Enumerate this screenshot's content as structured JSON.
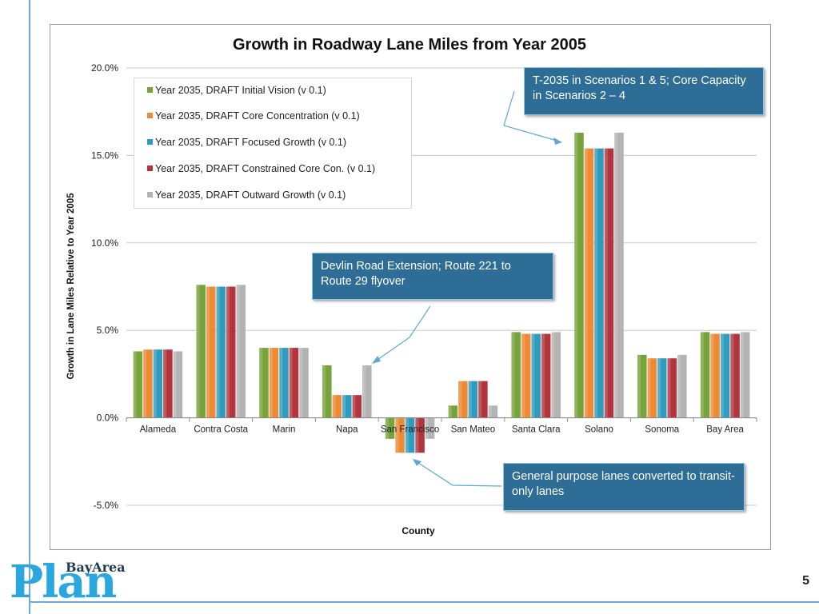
{
  "page": {
    "number": "5"
  },
  "logo": {
    "small": "BayArea",
    "large": "Plan"
  },
  "callouts": {
    "solano": "T-2035 in Scenarios 1 & 5; Core Capacity in Scenarios 2 – 4",
    "napa": "Devlin Road Extension; Route 221 to Route 29 flyover",
    "sf": "General purpose lanes converted to transit-only lanes"
  },
  "chart_data": {
    "type": "bar",
    "title": "Growth in Roadway Lane Miles from Year 2005",
    "xlabel": "County",
    "ylabel": "Growth in Lane Miles Relative to Year 2005",
    "ylim": [
      -5,
      20
    ],
    "yticks": [
      -5,
      0,
      5,
      10,
      15,
      20
    ],
    "ytick_labels": [
      "-5.0%",
      "0.0%",
      "5.0%",
      "10.0%",
      "15.0%",
      "20.0%"
    ],
    "grid": true,
    "legend_position": "top-left",
    "categories": [
      "Alameda",
      "Contra Costa",
      "Marin",
      "Napa",
      "San Francisco",
      "San Mateo",
      "Santa Clara",
      "Solano",
      "Sonoma",
      "Bay Area"
    ],
    "series": [
      {
        "name": "Year 2035, DRAFT Initial Vision (v 0.1)",
        "color": "#77a33b",
        "values": [
          3.8,
          7.6,
          4.0,
          3.0,
          -1.2,
          0.7,
          4.9,
          16.3,
          3.6,
          4.9
        ]
      },
      {
        "name": "Year 2035, DRAFT Core Concentration (v 0.1)",
        "color": "#ed8a36",
        "values": [
          3.9,
          7.5,
          4.0,
          1.3,
          -2.0,
          2.1,
          4.8,
          15.4,
          3.4,
          4.8
        ]
      },
      {
        "name": "Year 2035, DRAFT Focused Growth (v 0.1)",
        "color": "#2f9bbf",
        "values": [
          3.9,
          7.5,
          4.0,
          1.3,
          -2.0,
          2.1,
          4.8,
          15.4,
          3.4,
          4.8
        ]
      },
      {
        "name": "Year 2035, DRAFT Constrained Core Con. (v 0.1)",
        "color": "#b2343c",
        "values": [
          3.9,
          7.5,
          4.0,
          1.3,
          -2.0,
          2.1,
          4.8,
          15.4,
          3.4,
          4.8
        ]
      },
      {
        "name": "Year 2035, DRAFT Outward Growth (v 0.1)",
        "color": "#b3b3b3",
        "values": [
          3.8,
          7.6,
          4.0,
          3.0,
          -1.2,
          0.7,
          4.9,
          16.3,
          3.6,
          4.9
        ]
      }
    ]
  }
}
